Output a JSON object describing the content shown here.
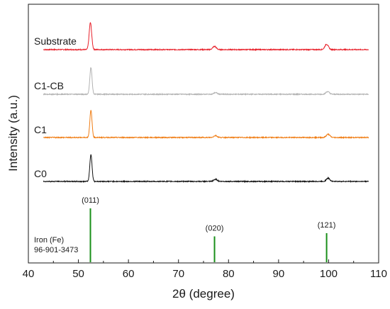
{
  "chart_data": {
    "type": "line",
    "xlabel": "2θ (degree)",
    "ylabel": "Intensity (a.u.)",
    "xlim": [
      40,
      110
    ],
    "xticks": [
      40,
      50,
      60,
      70,
      80,
      90,
      100,
      110
    ],
    "grid": false,
    "series": [
      {
        "name": "Substrate",
        "color": "#e8202a",
        "baseline": 1.0,
        "peaks": [
          {
            "x": 52.4,
            "height": 1.0,
            "width": 0.25
          },
          {
            "x": 77.2,
            "height": 0.12,
            "width": 0.35
          },
          {
            "x": 99.6,
            "height": 0.2,
            "width": 0.35
          }
        ]
      },
      {
        "name": "C1-CB",
        "color": "#b3b3b3",
        "baseline": 1.0,
        "peaks": [
          {
            "x": 52.5,
            "height": 1.0,
            "width": 0.22
          },
          {
            "x": 77.4,
            "height": 0.06,
            "width": 0.35
          },
          {
            "x": 99.8,
            "height": 0.1,
            "width": 0.35
          }
        ]
      },
      {
        "name": "C1",
        "color": "#f07d14",
        "baseline": 1.0,
        "peaks": [
          {
            "x": 52.5,
            "height": 1.0,
            "width": 0.22
          },
          {
            "x": 77.4,
            "height": 0.07,
            "width": 0.35
          },
          {
            "x": 99.9,
            "height": 0.12,
            "width": 0.35
          }
        ]
      },
      {
        "name": "C0",
        "color": "#111111",
        "baseline": 1.0,
        "peaks": [
          {
            "x": 52.5,
            "height": 1.0,
            "width": 0.22
          },
          {
            "x": 77.4,
            "height": 0.08,
            "width": 0.35
          },
          {
            "x": 99.9,
            "height": 0.12,
            "width": 0.35
          }
        ]
      }
    ],
    "reference": {
      "caption_line1": "Iron (Fe)",
      "caption_line2": "96-901-3473",
      "color": "#1a8f1a",
      "lines": [
        {
          "x": 52.4,
          "label": "(011)",
          "intensity": 1.0
        },
        {
          "x": 77.2,
          "label": "(020)",
          "intensity": 0.48
        },
        {
          "x": 99.6,
          "label": "(121)",
          "intensity": 0.54
        }
      ]
    }
  }
}
